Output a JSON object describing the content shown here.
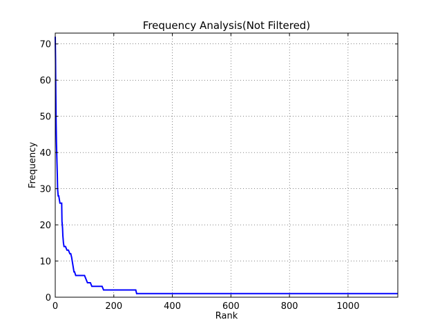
{
  "chart_data": {
    "type": "line",
    "title": "Frequency Analysis(Not Filtered)",
    "xlabel": "Rank",
    "ylabel": "Frequency",
    "xlim": [
      0,
      1170
    ],
    "ylim": [
      0,
      73
    ],
    "xticks": [
      0,
      200,
      400,
      600,
      800,
      1000
    ],
    "yticks": [
      0,
      10,
      20,
      30,
      40,
      50,
      60,
      70
    ],
    "grid": true,
    "series": [
      {
        "color": "#0000ff",
        "x": [
          0,
          1,
          2,
          3,
          4,
          5,
          6,
          7,
          8,
          10,
          12,
          14,
          16,
          18,
          20,
          22,
          23,
          24,
          25,
          26,
          27,
          28,
          30,
          35,
          40,
          45,
          50,
          53,
          56,
          58,
          60,
          62,
          64,
          66,
          70,
          75,
          80,
          85,
          90,
          95,
          100,
          105,
          110,
          115,
          120,
          125,
          130,
          140,
          150,
          160,
          165,
          170,
          200,
          250,
          275,
          278,
          300,
          400,
          500,
          600,
          700,
          800,
          900,
          1000,
          1100,
          1170
        ],
        "y": [
          72,
          66,
          56,
          48,
          43,
          40,
          37,
          34,
          30,
          28,
          28,
          27,
          26,
          26,
          26,
          26,
          21,
          20,
          19,
          17,
          16,
          15,
          14,
          14,
          13,
          13,
          12,
          12,
          11,
          10,
          9,
          8,
          7,
          7,
          6,
          6,
          6,
          6,
          6,
          6,
          6,
          5,
          4,
          4,
          4,
          3,
          3,
          3,
          3,
          3,
          2,
          2,
          2,
          2,
          2,
          1,
          1,
          1,
          1,
          1,
          1,
          1,
          1,
          1,
          1,
          1
        ]
      }
    ]
  }
}
